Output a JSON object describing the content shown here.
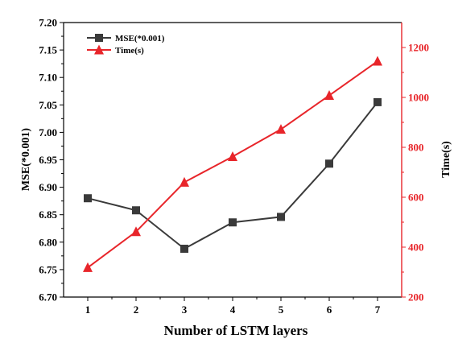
{
  "chart_data": {
    "type": "line",
    "title": "",
    "x": [
      1,
      2,
      3,
      4,
      5,
      6,
      7
    ],
    "xlabel": "Number of LSTM layers",
    "ylabel_left": "MSE(*0.001)",
    "ylabel_right": "Time(s)",
    "xlim": [
      0.5,
      7.5
    ],
    "ylim_left": [
      6.7,
      7.2
    ],
    "ylim_right": [
      200,
      1300
    ],
    "x_ticks": [
      "1",
      "2",
      "3",
      "4",
      "5",
      "6",
      "7"
    ],
    "y_ticks_left": [
      "6.70",
      "6.75",
      "6.80",
      "6.85",
      "6.90",
      "6.95",
      "7.00",
      "7.05",
      "7.10",
      "7.15",
      "7.20"
    ],
    "y_ticks_right": [
      "200",
      "400",
      "600",
      "800",
      "1000",
      "1200"
    ],
    "grid": false,
    "legend_position": "top-left",
    "series": [
      {
        "name": "MSE(*0.001)",
        "axis": "left",
        "marker": "square",
        "color": "#3a3a3a",
        "values": [
          6.88,
          6.858,
          6.788,
          6.836,
          6.846,
          6.943,
          7.055
        ]
      },
      {
        "name": "Time(s)",
        "axis": "right",
        "marker": "triangle",
        "color": "#e8252a",
        "values": [
          318,
          462,
          660,
          763,
          872,
          1008,
          1145
        ]
      }
    ]
  }
}
